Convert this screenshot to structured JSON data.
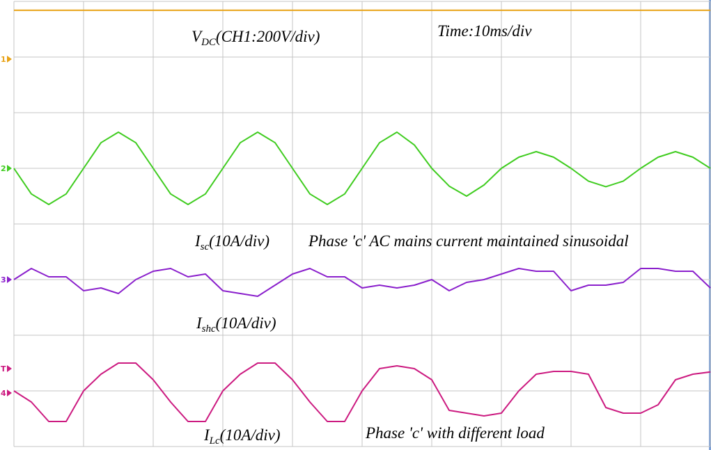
{
  "chart_data": {
    "type": "line",
    "xlim": [
      0,
      100
    ],
    "ylim": [
      0,
      8
    ],
    "grid": true,
    "x": [
      0,
      2.5,
      5,
      7.5,
      10,
      12.5,
      15,
      17.5,
      20,
      22.5,
      25,
      27.5,
      30,
      32.5,
      35,
      37.5,
      40,
      42.5,
      45,
      47.5,
      50,
      52.5,
      55,
      57.5,
      60,
      62.5,
      65,
      67.5,
      70,
      72.5,
      75,
      77.5,
      80,
      82.5,
      85,
      87.5,
      90,
      92.5,
      95,
      97.5,
      100
    ],
    "series": [
      {
        "color": "#e8a317",
        "values": [
          7.84,
          7.84,
          7.84,
          7.84,
          7.84,
          7.84,
          7.84,
          7.84,
          7.84,
          7.84,
          7.84,
          7.84,
          7.84,
          7.84,
          7.84,
          7.84,
          7.84,
          7.84,
          7.84,
          7.84,
          7.84,
          7.84,
          7.84,
          7.84,
          7.84,
          7.84,
          7.84,
          7.84,
          7.84,
          7.84,
          7.84,
          7.84,
          7.84,
          7.84,
          7.84,
          7.84,
          7.84,
          7.84,
          7.84,
          7.84,
          7.84
        ]
      },
      {
        "color": "#3fcc1f",
        "values": [
          5,
          4.54,
          4.35,
          4.54,
          5,
          5.46,
          5.65,
          5.46,
          5,
          4.54,
          4.35,
          4.54,
          5,
          5.46,
          5.65,
          5.46,
          5,
          4.54,
          4.35,
          4.54,
          5,
          5.46,
          5.65,
          5.42,
          5,
          4.68,
          4.5,
          4.7,
          5,
          5.2,
          5.3,
          5.2,
          5,
          4.77,
          4.67,
          4.77,
          5,
          5.2,
          5.3,
          5.2,
          5
        ]
      },
      {
        "color": "#8a1fcc",
        "values": [
          3,
          3.2,
          3.05,
          3.05,
          2.8,
          2.85,
          2.75,
          3,
          3.15,
          3.2,
          3.05,
          3.1,
          2.8,
          2.75,
          2.7,
          2.9,
          3.1,
          3.2,
          3.05,
          3.05,
          2.85,
          2.9,
          2.85,
          2.9,
          3,
          2.8,
          2.95,
          3,
          3.1,
          3.2,
          3.15,
          3.15,
          2.8,
          2.9,
          2.9,
          2.95,
          3.2,
          3.2,
          3.15,
          3.15,
          2.85
        ]
      },
      {
        "color": "#cc1a80",
        "values": [
          1,
          0.8,
          0.45,
          0.45,
          1,
          1.3,
          1.5,
          1.5,
          1.2,
          0.8,
          0.45,
          0.45,
          1,
          1.3,
          1.5,
          1.5,
          1.2,
          0.8,
          0.45,
          0.45,
          1,
          1.4,
          1.45,
          1.4,
          1.2,
          0.65,
          0.6,
          0.55,
          0.6,
          1,
          1.3,
          1.35,
          1.35,
          1.3,
          0.7,
          0.6,
          0.6,
          0.75,
          1.2,
          1.3,
          1.34
        ]
      }
    ],
    "annotations": [
      {
        "main": "V",
        "sub": "DC",
        "rest": "(CH1:200V/div)"
      },
      {
        "main": "Time:10ms/div",
        "sub": "",
        "rest": ""
      },
      {
        "main": "I",
        "sub": "sc",
        "rest": "(10A/div)"
      },
      {
        "main": "Phase 'c' AC mains current maintained sinusoidal",
        "sub": "",
        "rest": ""
      },
      {
        "main": "I",
        "sub": "shc",
        "rest": "(10A/div)"
      },
      {
        "main": "I",
        "sub": "Lc",
        "rest": "(10A/div)"
      },
      {
        "main": "Phase 'c' with different load",
        "sub": "",
        "rest": ""
      }
    ],
    "channel_markers": [
      {
        "label": "1",
        "color": "#e8a317"
      },
      {
        "label": "2",
        "color": "#3fcc1f"
      },
      {
        "label": "3",
        "color": "#8a1fcc"
      },
      {
        "label": "T",
        "color": "#cc1a80"
      },
      {
        "label": "4",
        "color": "#cc1a80"
      }
    ]
  }
}
